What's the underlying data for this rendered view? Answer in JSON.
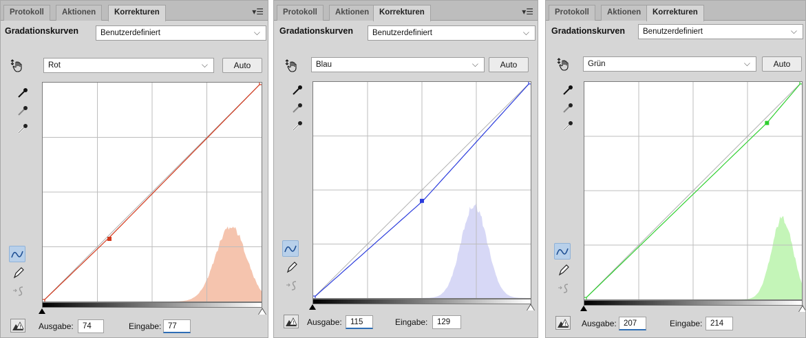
{
  "tabs": [
    "Protokoll",
    "Aktionen",
    "Korrekturen"
  ],
  "preset_label": "Gradationskurven",
  "preset_value": "Benutzerdefiniert",
  "auto_label": "Auto",
  "output_label": "Ausgabe:",
  "input_label": "Eingabe:",
  "panels": [
    {
      "channel": "Rot",
      "output": "74",
      "input": "77",
      "curve_color": "#d23a1e",
      "histogram_color": "#f5c4ae"
    },
    {
      "channel": "Blau",
      "output": "115",
      "input": "129",
      "curve_color": "#2a3bdc",
      "histogram_color": "#d7d8f6"
    },
    {
      "channel": "Grün",
      "output": "207",
      "input": "214",
      "curve_color": "#2fcf2f",
      "histogram_color": "#c4f5b8"
    }
  ]
}
